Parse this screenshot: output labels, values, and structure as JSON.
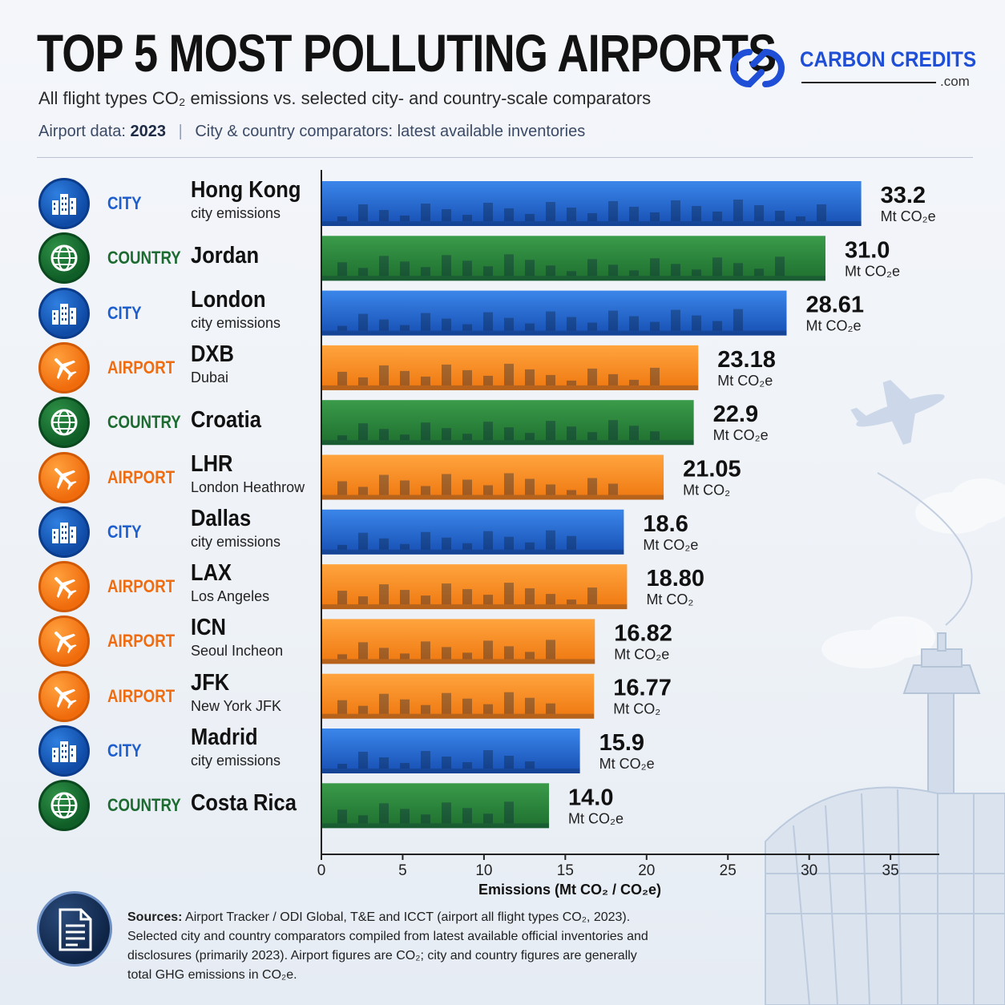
{
  "header": {
    "title": "TOP 5 MOST POLLUTING AIRPORTS",
    "subtitle": "All flight types CO₂ emissions vs. selected city- and country-scale comparators",
    "meta_label": "Airport data:",
    "meta_year": "2023",
    "meta_rest": "City & country comparators: latest available inventories"
  },
  "brand": {
    "name": "CARBON CREDITS",
    "tld": ".com"
  },
  "colors": {
    "city": "#1f63cc",
    "country": "#2a8a3c",
    "airport": "#f78a16",
    "brand": "#1f4fd6"
  },
  "chart_data": {
    "type": "bar",
    "orientation": "horizontal",
    "xlabel": "Emissions (Mt CO₂ / CO₂e)",
    "xlim": [
      0,
      38
    ],
    "xticks": [
      0,
      5,
      10,
      15,
      20,
      25,
      30,
      35
    ],
    "categories": [
      "Hong Kong",
      "Jordan",
      "London",
      "DXB",
      "Croatia",
      "LHR",
      "Dallas",
      "LAX",
      "ICN",
      "JFK",
      "Madrid",
      "Costa Rica"
    ],
    "rows": [
      {
        "category": "CITY",
        "kind": "city",
        "name": "Hong Kong",
        "sub": "city emissions",
        "value": 33.2,
        "label": "33.2",
        "unit": "Mt CO₂e",
        "icon": "city-buildings-icon"
      },
      {
        "category": "COUNTRY",
        "kind": "country",
        "name": "Jordan",
        "sub": "",
        "value": 31.0,
        "label": "31.0",
        "unit": "Mt CO₂e",
        "icon": "globe-icon"
      },
      {
        "category": "CITY",
        "kind": "city",
        "name": "London",
        "sub": "city emissions",
        "value": 28.61,
        "label": "28.61",
        "unit": "Mt CO₂e",
        "icon": "city-buildings-icon"
      },
      {
        "category": "AIRPORT",
        "kind": "airport",
        "name": "DXB",
        "sub": "Dubai",
        "value": 23.18,
        "label": "23.18",
        "unit": "Mt CO₂e",
        "icon": "airplane-icon"
      },
      {
        "category": "COUNTRY",
        "kind": "country",
        "name": "Croatia",
        "sub": "",
        "value": 22.9,
        "label": "22.9",
        "unit": "Mt CO₂e",
        "icon": "globe-icon"
      },
      {
        "category": "AIRPORT",
        "kind": "airport",
        "name": "LHR",
        "sub": "London Heathrow",
        "value": 21.05,
        "label": "21.05",
        "unit": "Mt CO₂",
        "icon": "airplane-icon"
      },
      {
        "category": "CITY",
        "kind": "city",
        "name": "Dallas",
        "sub": "city emissions",
        "value": 18.6,
        "label": "18.6",
        "unit": "Mt CO₂e",
        "icon": "city-buildings-icon"
      },
      {
        "category": "AIRPORT",
        "kind": "airport",
        "name": "LAX",
        "sub": "Los Angeles",
        "value": 18.8,
        "label": "18.80",
        "unit": "Mt CO₂",
        "icon": "airplane-icon"
      },
      {
        "category": "AIRPORT",
        "kind": "airport",
        "name": "ICN",
        "sub": "Seoul Incheon",
        "value": 16.82,
        "label": "16.82",
        "unit": "Mt CO₂e",
        "icon": "airplane-icon"
      },
      {
        "category": "AIRPORT",
        "kind": "airport",
        "name": "JFK",
        "sub": "New York JFK",
        "value": 16.77,
        "label": "16.77",
        "unit": "Mt CO₂",
        "icon": "airplane-icon"
      },
      {
        "category": "CITY",
        "kind": "city",
        "name": "Madrid",
        "sub": "city emissions",
        "value": 15.9,
        "label": "15.9",
        "unit": "Mt CO₂e",
        "icon": "city-buildings-icon"
      },
      {
        "category": "COUNTRY",
        "kind": "country",
        "name": "Costa Rica",
        "sub": "",
        "value": 14.0,
        "label": "14.0",
        "unit": "Mt CO₂e",
        "icon": "globe-icon"
      }
    ]
  },
  "footer": {
    "sources_label": "Sources:",
    "sources_text": "Airport Tracker / ODI Global, T&E and ICCT (airport all flight types CO₂, 2023). Selected city and country comparators compiled from latest available official inventories and disclosures (primarily 2023). Airport figures are CO₂; city and country figures are generally total GHG emissions in CO₂e.",
    "icon": "document-icon"
  }
}
